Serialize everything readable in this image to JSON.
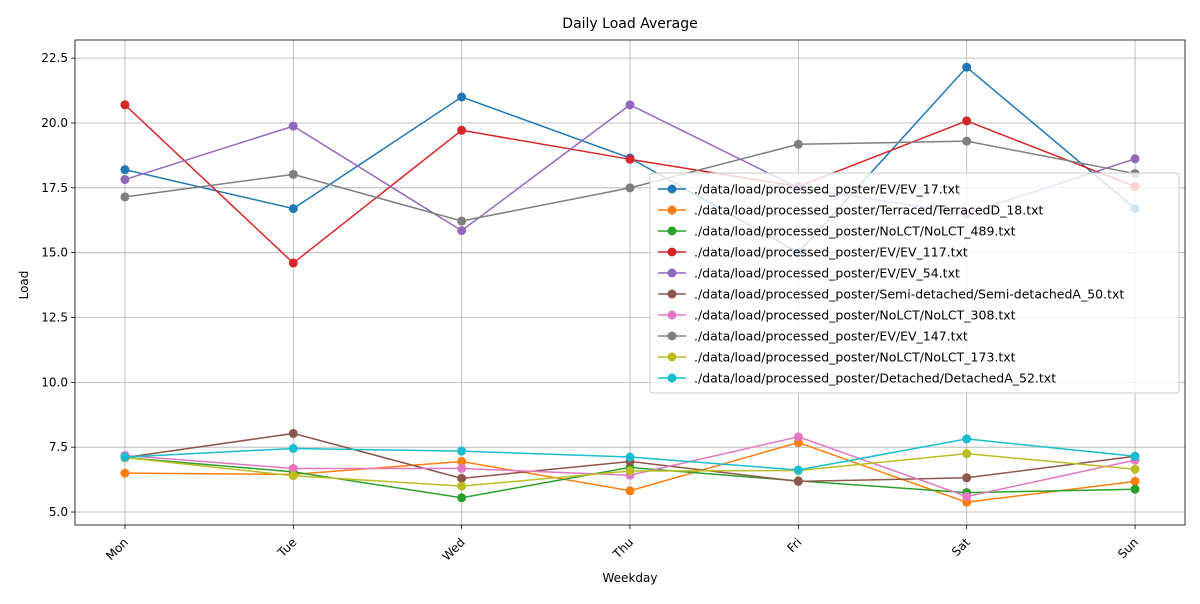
{
  "chart_data": {
    "type": "line",
    "title": "Daily Load Average",
    "xlabel": "Weekday",
    "ylabel": "Load",
    "categories": [
      "Mon",
      "Tue",
      "Wed",
      "Thu",
      "Fri",
      "Sat",
      "Sun"
    ],
    "ylim": [
      4.5,
      23.2
    ],
    "yticks": [
      5.0,
      7.5,
      10.0,
      12.5,
      15.0,
      17.5,
      20.0,
      22.5
    ],
    "ytick_labels": [
      "5.0",
      "7.5",
      "10.0",
      "12.5",
      "15.0",
      "17.5",
      "20.0",
      "22.5"
    ],
    "grid": true,
    "legend_position": "right",
    "series": [
      {
        "name": "./data/load/processed_poster/EV/EV_17.txt",
        "color": "#1f77b4",
        "values": [
          18.2,
          16.7,
          21.0,
          18.65,
          15.0,
          22.15,
          16.7
        ]
      },
      {
        "name": "./data/load/processed_poster/Terraced/TerracedD_18.txt",
        "color": "#ff7f0e",
        "values": [
          6.5,
          6.45,
          6.95,
          5.82,
          7.68,
          5.38,
          6.18
        ]
      },
      {
        "name": "./data/load/processed_poster/NoLCT/NoLCT_489.txt",
        "color": "#2ca02c",
        "values": [
          7.1,
          6.55,
          5.55,
          6.72,
          6.2,
          5.75,
          5.88
        ]
      },
      {
        "name": "./data/load/processed_poster/EV/EV_117.txt",
        "color": "#d62728",
        "values": [
          20.7,
          14.6,
          19.72,
          18.6,
          17.55,
          20.08,
          17.55
        ]
      },
      {
        "name": "./data/load/processed_poster/EV/EV_54.txt",
        "color": "#9467bd",
        "values": [
          17.82,
          19.88,
          15.85,
          20.7,
          17.5,
          16.5,
          18.62
        ]
      },
      {
        "name": "./data/load/processed_poster/Semi-detached/Semi-detachedA_50.txt",
        "color": "#8c564b",
        "values": [
          7.1,
          8.03,
          6.3,
          6.95,
          6.18,
          6.32,
          7.15
        ]
      },
      {
        "name": "./data/load/processed_poster/NoLCT/NoLCT_308.txt",
        "color": "#e377c2",
        "values": [
          7.18,
          6.68,
          6.68,
          6.42,
          7.9,
          5.6,
          7.0
        ]
      },
      {
        "name": "./data/load/processed_poster/EV/EV_147.txt",
        "color": "#7f7f7f",
        "values": [
          17.15,
          18.02,
          16.22,
          17.5,
          19.18,
          19.3,
          18.05
        ]
      },
      {
        "name": "./data/load/processed_poster/NoLCT/NoLCT_173.txt",
        "color": "#bcbd22",
        "values": [
          7.1,
          6.4,
          6.0,
          6.58,
          6.6,
          7.25,
          6.65
        ]
      },
      {
        "name": "./data/load/processed_poster/Detached/DetachedA_52.txt",
        "color": "#17becf",
        "values": [
          7.12,
          7.45,
          7.35,
          7.12,
          6.62,
          7.82,
          7.15
        ]
      }
    ]
  }
}
